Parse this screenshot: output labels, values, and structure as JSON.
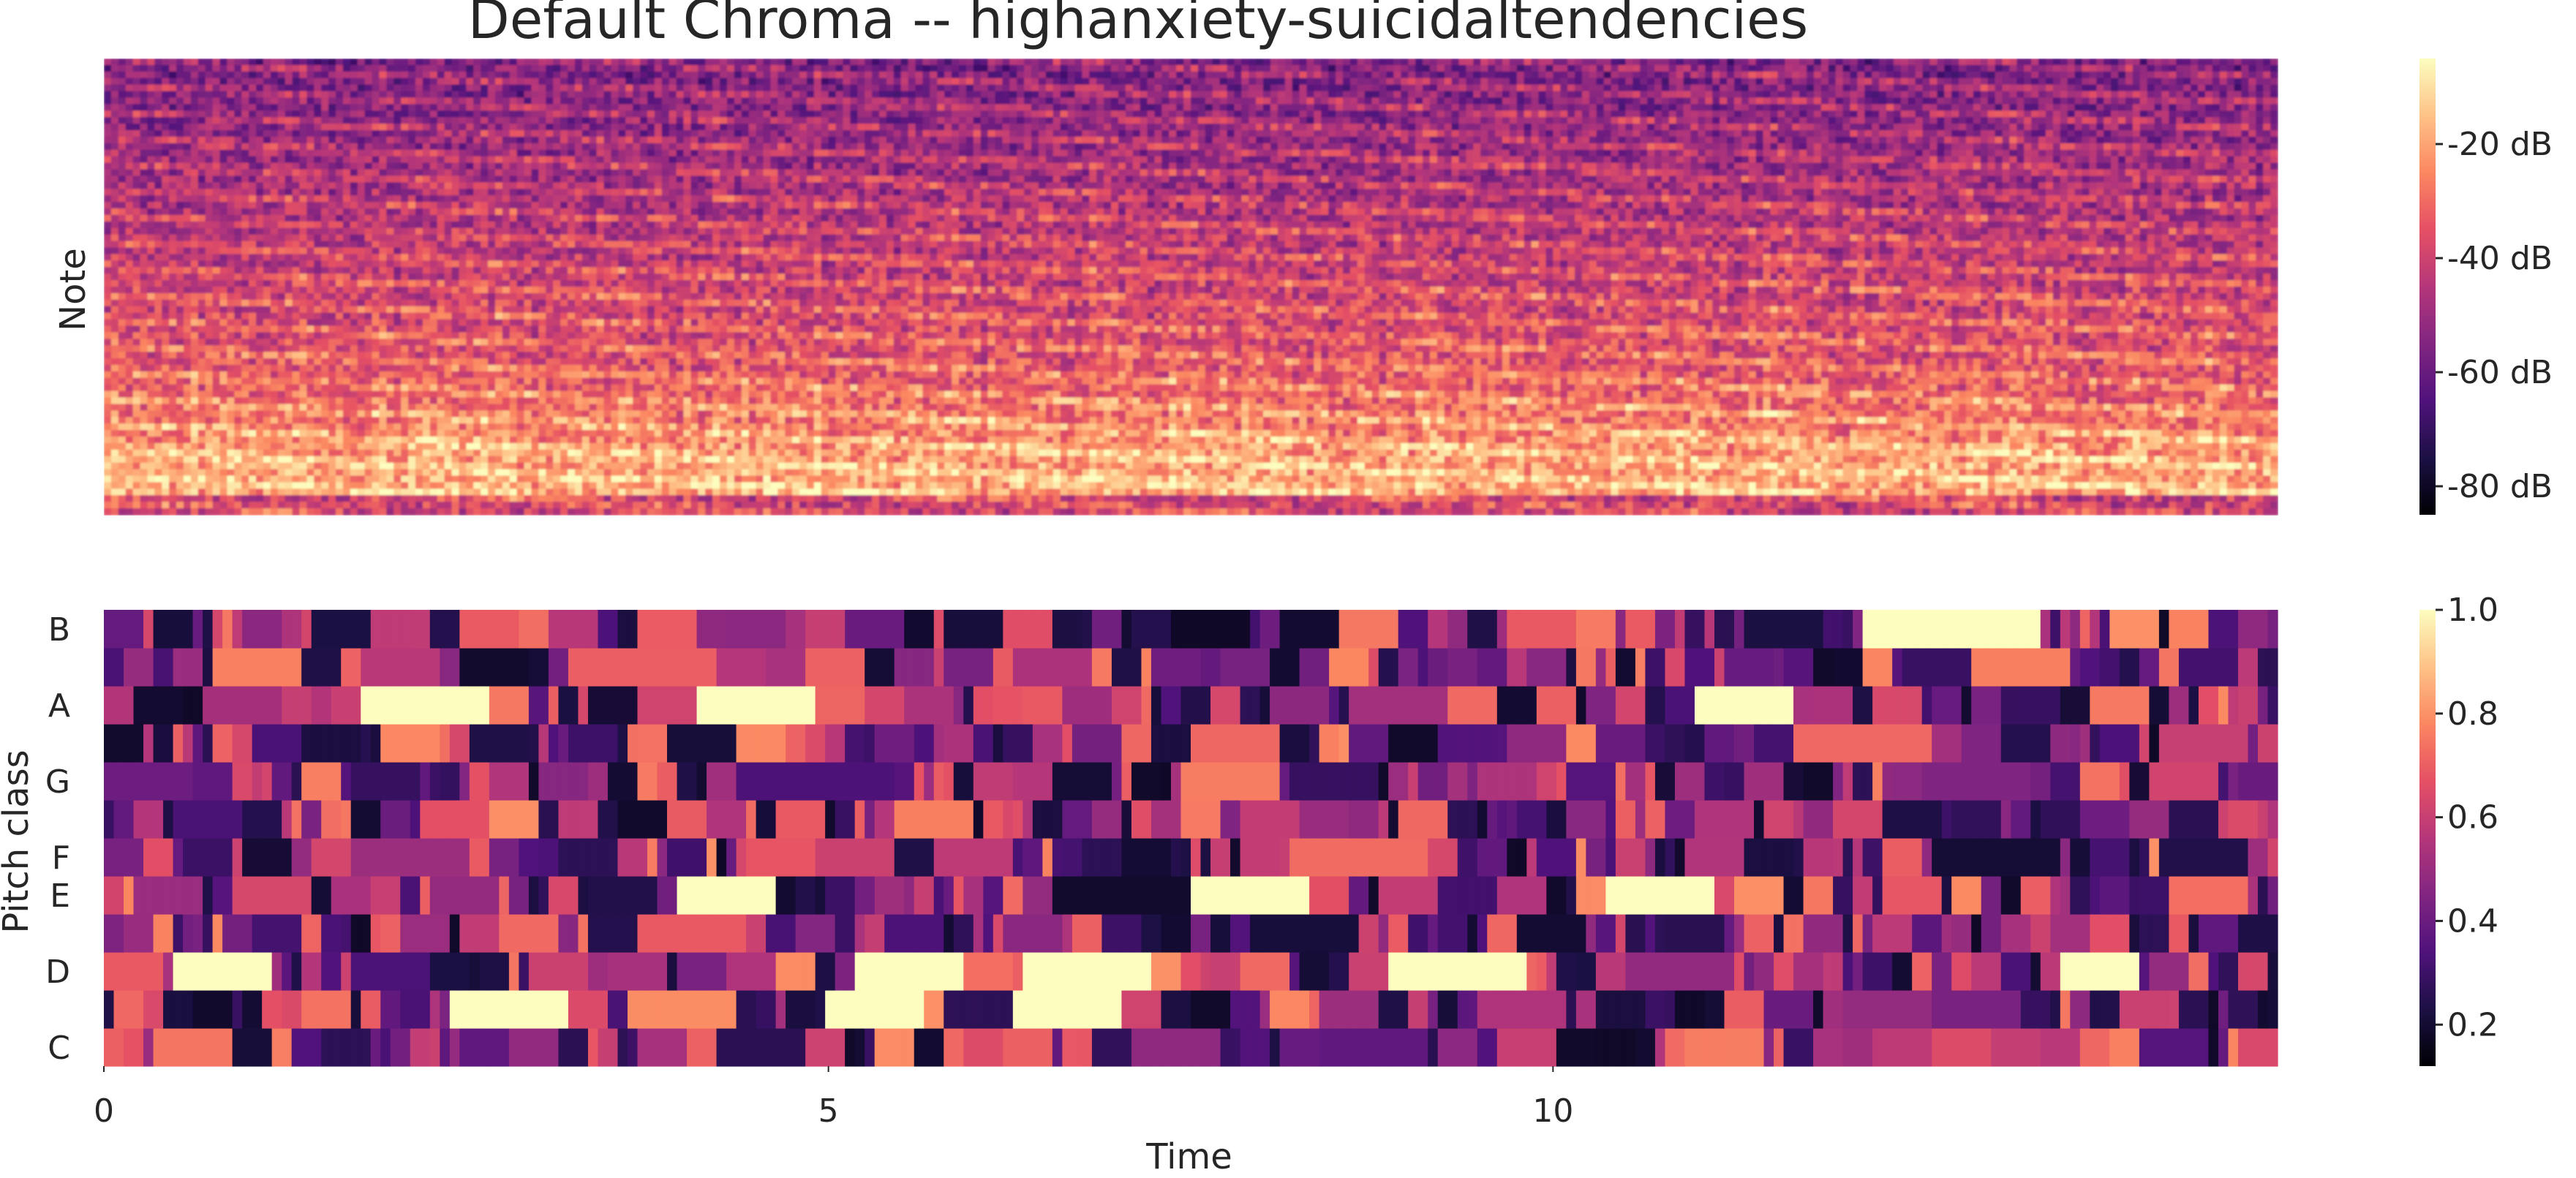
{
  "chart_data": [
    {
      "type": "heatmap",
      "title": "Default Chroma -- highanxiety-suicidaltendencies",
      "ylabel": "Note",
      "xlabel": "",
      "colormap": "magma",
      "colorbar": {
        "ticks": [
          "-20 dB",
          "-40 dB",
          "-60 dB",
          "-80 dB"
        ],
        "range": [
          -85,
          -5
        ]
      },
      "x_range": [
        0,
        15
      ]
    },
    {
      "type": "heatmap",
      "xlabel": "Time",
      "ylabel": "Pitch class",
      "colormap": "magma",
      "x_ticks": [
        "0",
        "5",
        "10"
      ],
      "x_range": [
        0,
        15
      ],
      "pitch_classes": [
        "C",
        "C#",
        "D",
        "D#",
        "E",
        "F",
        "F#",
        "G",
        "G#",
        "A",
        "A#",
        "B"
      ],
      "y_tick_labels": [
        "C",
        "D",
        "E",
        "F",
        "G",
        "A",
        "B"
      ],
      "colorbar": {
        "ticks": [
          "1.0",
          "0.8",
          "0.6",
          "0.4",
          "0.2"
        ],
        "range": [
          0.12,
          1.0
        ]
      },
      "sustained_peaks": [
        {
          "pitch": "B",
          "start": 12.2,
          "end": 13.3,
          "value": 1.0
        },
        {
          "pitch": "A",
          "start": 1.8,
          "end": 2.6,
          "value": 1.0
        },
        {
          "pitch": "A",
          "start": 4.1,
          "end": 4.9,
          "value": 1.0
        },
        {
          "pitch": "A",
          "start": 11.0,
          "end": 11.6,
          "value": 1.0
        },
        {
          "pitch": "E",
          "start": 4.0,
          "end": 4.6,
          "value": 1.0
        },
        {
          "pitch": "E",
          "start": 7.5,
          "end": 8.3,
          "value": 1.0
        },
        {
          "pitch": "E",
          "start": 10.4,
          "end": 11.1,
          "value": 1.0
        },
        {
          "pitch": "D",
          "start": 0.5,
          "end": 1.1,
          "value": 1.0
        },
        {
          "pitch": "D",
          "start": 5.2,
          "end": 5.9,
          "value": 1.0
        },
        {
          "pitch": "D",
          "start": 6.4,
          "end": 7.2,
          "value": 1.0
        },
        {
          "pitch": "D",
          "start": 8.9,
          "end": 9.8,
          "value": 1.0
        },
        {
          "pitch": "D",
          "start": 13.5,
          "end": 14.0,
          "value": 1.0
        },
        {
          "pitch": "C#",
          "start": 2.4,
          "end": 3.2,
          "value": 1.0
        },
        {
          "pitch": "C#",
          "start": 5.0,
          "end": 5.6,
          "value": 1.0
        },
        {
          "pitch": "C#",
          "start": 6.3,
          "end": 7.0,
          "value": 1.0
        }
      ]
    }
  ]
}
